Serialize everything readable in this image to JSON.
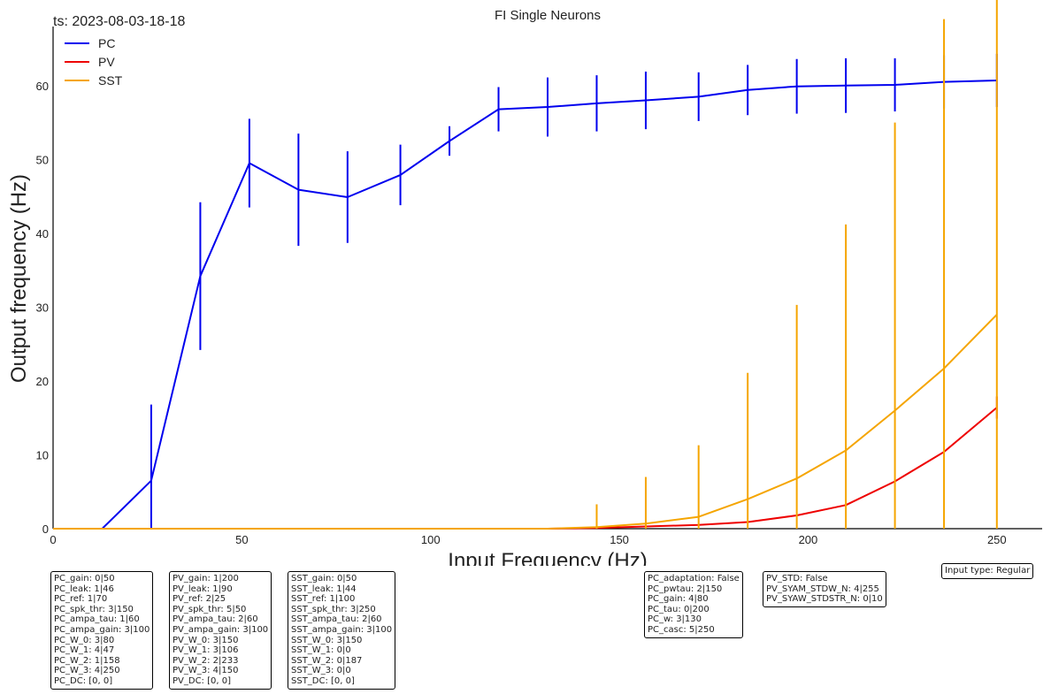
{
  "chart_data": {
    "type": "line",
    "title": "FI Single Neurons",
    "timestamp": "ts: 2023-08-03-18-18",
    "xlabel": "Input Frequency (Hz)",
    "ylabel": "Output frequency (Hz)",
    "xlim": [
      0,
      262
    ],
    "ylim": [
      0,
      68
    ],
    "xticks": [
      0,
      50,
      100,
      150,
      200,
      250
    ],
    "yticks": [
      0,
      10,
      20,
      30,
      40,
      50,
      60
    ],
    "grid": false,
    "legend_position": "top-left",
    "x": [
      0,
      13,
      26,
      39,
      52,
      65,
      78,
      92,
      105,
      118,
      131,
      144,
      157,
      171,
      184,
      197,
      210,
      223,
      236,
      250
    ],
    "series": [
      {
        "name": "PC",
        "color": "#0000ee",
        "values": [
          0,
          0,
          6.5,
          34.2,
          49.5,
          45.9,
          44.9,
          47.9,
          52.5,
          56.8,
          57.1,
          57.6,
          58.0,
          58.5,
          59.4,
          59.9,
          60.0,
          60.1,
          60.5,
          60.7
        ],
        "errors": [
          0,
          0,
          10.3,
          10.0,
          6.0,
          7.6,
          6.2,
          4.1,
          2.0,
          3.0,
          4.0,
          3.8,
          3.9,
          3.3,
          3.4,
          3.7,
          3.7,
          3.6,
          3.6,
          3.6
        ]
      },
      {
        "name": "PV",
        "color": "#ee0000",
        "values": [
          0,
          0,
          0,
          0,
          0,
          0,
          0,
          0,
          0,
          0,
          0,
          0.1,
          0.3,
          0.5,
          0.9,
          1.8,
          3.2,
          6.4,
          10.4,
          16.4
        ],
        "errors": [
          0,
          0,
          0,
          0,
          0,
          0,
          0,
          0,
          0,
          0,
          0,
          0,
          0,
          0,
          0,
          0,
          0,
          0,
          0,
          1.5
        ]
      },
      {
        "name": "SST",
        "color": "#f5a500",
        "values": [
          0,
          0,
          0,
          0,
          0,
          0,
          0,
          0,
          0,
          0,
          0,
          0.2,
          0.7,
          1.6,
          4.0,
          6.8,
          10.6,
          16.0,
          21.7,
          29.0
        ],
        "errors": [
          0,
          0,
          0,
          0,
          0,
          0,
          0,
          0,
          0,
          0,
          0,
          3.1,
          6.3,
          9.7,
          17.1,
          23.5,
          30.6,
          39.0,
          47.3,
          56.5
        ]
      }
    ]
  },
  "param_boxes": [
    {
      "lines": [
        "PC_gain: 0|50",
        "PC_leak: 1|46",
        "PC_ref: 1|70",
        "PC_spk_thr: 3|150",
        "PC_ampa_tau: 1|60",
        "PC_ampa_gain: 3|100",
        "PC_W_0: 3|80",
        "PC_W_1: 4|47",
        "PC_W_2: 1|158",
        "PC_W_3: 4|250",
        "PC_DC: [0, 0]"
      ]
    },
    {
      "lines": [
        "PV_gain: 1|200",
        "PV_leak: 1|90",
        "PV_ref: 2|25",
        "PV_spk_thr: 5|50",
        "PV_ampa_tau: 2|60",
        "PV_ampa_gain: 3|100",
        "PV_W_0: 3|150",
        "PV_W_1: 3|106",
        "PV_W_2: 2|233",
        "PV_W_3: 4|150",
        "PV_DC: [0, 0]"
      ]
    },
    {
      "lines": [
        "SST_gain: 0|50",
        "SST_leak: 1|44",
        "SST_ref: 1|100",
        "SST_spk_thr: 3|250",
        "SST_ampa_tau: 2|60",
        "SST_ampa_gain: 3|100",
        "SST_W_0: 3|150",
        "SST_W_1: 0|0",
        "SST_W_2: 0|187",
        "SST_W_3: 0|0",
        "SST_DC: [0, 0]"
      ]
    },
    {
      "lines": [
        "PC_adaptation: False",
        "PC_pwtau: 2|150",
        "PC_gain: 4|80",
        "PC_tau: 0|200",
        "PC_w: 3|130",
        "PC_casc: 5|250"
      ]
    },
    {
      "lines": [
        "PV_STD: False",
        "PV_SYAM_STDW_N: 4|255",
        "PV_SYAW_STDSTR_N: 0|10"
      ]
    },
    {
      "lines": [
        "Input type: Regular"
      ]
    }
  ]
}
